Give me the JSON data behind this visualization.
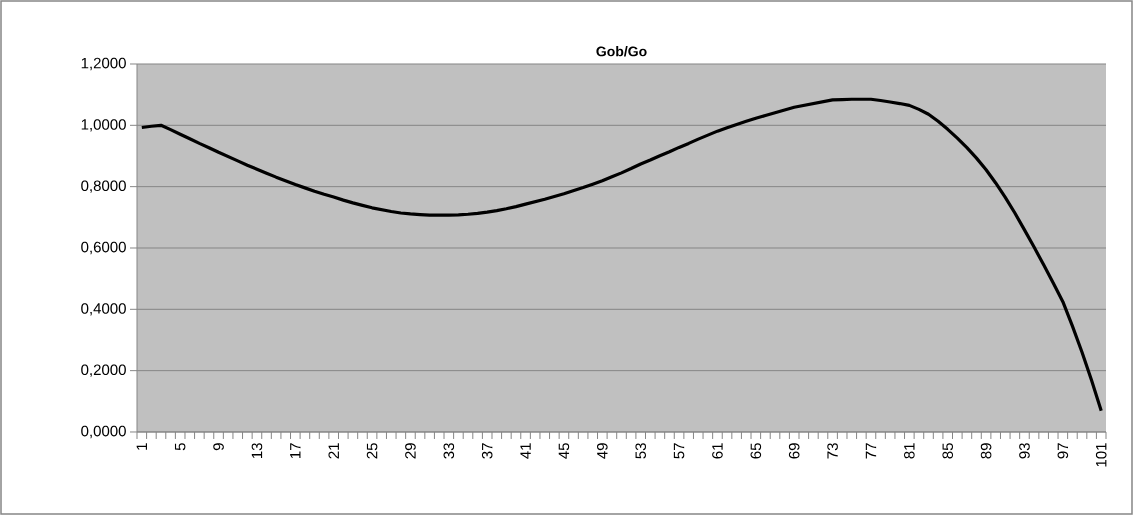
{
  "chart_data": {
    "type": "line",
    "title": "Gob/Go",
    "categories": [
      "1",
      null,
      null,
      null,
      "5",
      null,
      null,
      null,
      "9",
      null,
      null,
      null,
      "13",
      null,
      null,
      null,
      "17",
      null,
      null,
      null,
      "21",
      null,
      null,
      null,
      "25",
      null,
      null,
      null,
      "29",
      null,
      null,
      null,
      "33",
      null,
      null,
      null,
      "37",
      null,
      null,
      null,
      "41",
      null,
      null,
      null,
      "45",
      null,
      null,
      null,
      "49",
      null,
      null,
      null,
      "53",
      null,
      null,
      null,
      "57",
      null,
      null,
      null,
      "61",
      null,
      null,
      null,
      "65",
      null,
      null,
      null,
      "69",
      null,
      null,
      null,
      "73",
      null,
      null,
      null,
      "77",
      null,
      null,
      null,
      "81",
      null,
      null,
      null,
      "85",
      null,
      null,
      null,
      "89",
      null,
      null,
      null,
      "93",
      null,
      null,
      null,
      "97",
      null,
      null,
      null,
      "101"
    ],
    "series": [
      {
        "color": "#000000",
        "values": [
          0.993,
          0.997,
          1.0,
          0.986,
          0.971,
          0.956,
          0.941,
          0.927,
          0.912,
          0.898,
          0.884,
          0.87,
          0.857,
          0.844,
          0.831,
          0.819,
          0.807,
          0.796,
          0.785,
          0.775,
          0.766,
          0.756,
          0.747,
          0.739,
          0.731,
          0.725,
          0.719,
          0.714,
          0.711,
          0.709,
          0.707,
          0.707,
          0.707,
          0.708,
          0.71,
          0.713,
          0.717,
          0.722,
          0.728,
          0.735,
          0.743,
          0.751,
          0.759,
          0.768,
          0.777,
          0.787,
          0.797,
          0.808,
          0.819,
          0.832,
          0.845,
          0.859,
          0.874,
          0.887,
          0.901,
          0.914,
          0.928,
          0.941,
          0.955,
          0.968,
          0.981,
          0.992,
          1.003,
          1.013,
          1.023,
          1.032,
          1.041,
          1.05,
          1.059,
          1.065,
          1.071,
          1.077,
          1.083,
          1.084,
          1.085,
          1.085,
          1.085,
          1.081,
          1.076,
          1.071,
          1.065,
          1.052,
          1.036,
          1.013,
          0.987,
          0.958,
          0.927,
          0.893,
          0.855,
          0.812,
          0.765,
          0.714,
          0.659,
          0.603,
          0.545,
          0.486,
          0.425,
          0.345,
          0.26,
          0.168,
          0.069
        ]
      }
    ],
    "ylim": [
      0,
      1.2
    ],
    "yticks": [
      {
        "value": 0,
        "label": "0,0000"
      },
      {
        "value": 0.2,
        "label": "0,2000"
      },
      {
        "value": 0.4,
        "label": "0,4000"
      },
      {
        "value": 0.6,
        "label": "0,6000"
      },
      {
        "value": 0.8,
        "label": "0,8000"
      },
      {
        "value": 1.0,
        "label": "1,0000"
      },
      {
        "value": 1.2,
        "label": "1,2000"
      }
    ],
    "grid": "y"
  }
}
